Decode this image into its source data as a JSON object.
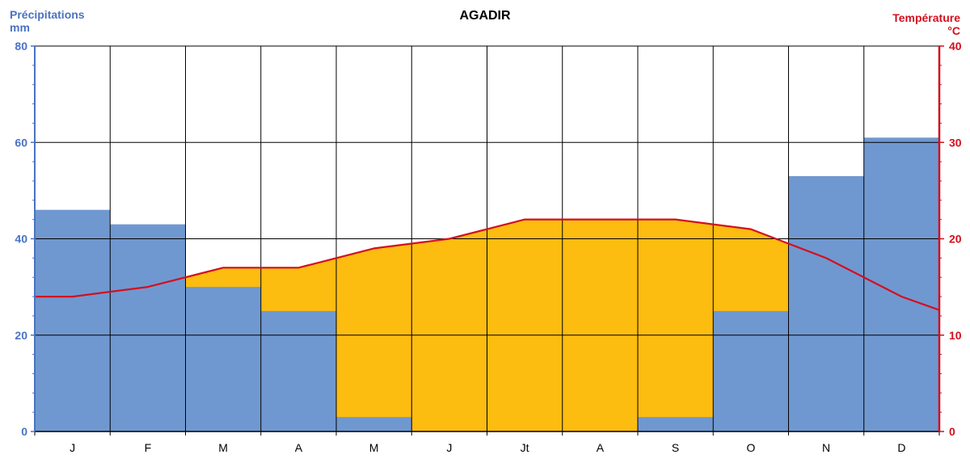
{
  "chart_data": {
    "type": "bar+line",
    "title": "AGADIR",
    "left_axis": {
      "label_line1": "Précipitations",
      "label_line2": "mm",
      "ylim": [
        0,
        80
      ],
      "ticks": [
        0,
        20,
        40,
        60,
        80
      ],
      "color": "#4a72c4"
    },
    "right_axis": {
      "label_line1": "Température",
      "label_line2": "°C",
      "ylim": [
        0,
        40
      ],
      "ticks": [
        0,
        10,
        20,
        30,
        40
      ],
      "color": "#d40f1e"
    },
    "categories": [
      "J",
      "F",
      "M",
      "A",
      "M",
      "J",
      "Jt",
      "A",
      "S",
      "O",
      "N",
      "D"
    ],
    "series": [
      {
        "name": "Précipitations",
        "kind": "bar",
        "axis": "left",
        "color": "#7098d0",
        "values": [
          46,
          43,
          30,
          25,
          3,
          0,
          0,
          0,
          3,
          25,
          53,
          61
        ]
      },
      {
        "name": "Température",
        "kind": "line",
        "axis": "right",
        "color": "#d40f1e",
        "values": [
          14,
          15,
          17,
          17,
          19,
          20,
          22,
          22,
          22,
          21,
          18,
          14
        ]
      }
    ],
    "dry_fill_color": "#fcbc10",
    "grid": true
  }
}
